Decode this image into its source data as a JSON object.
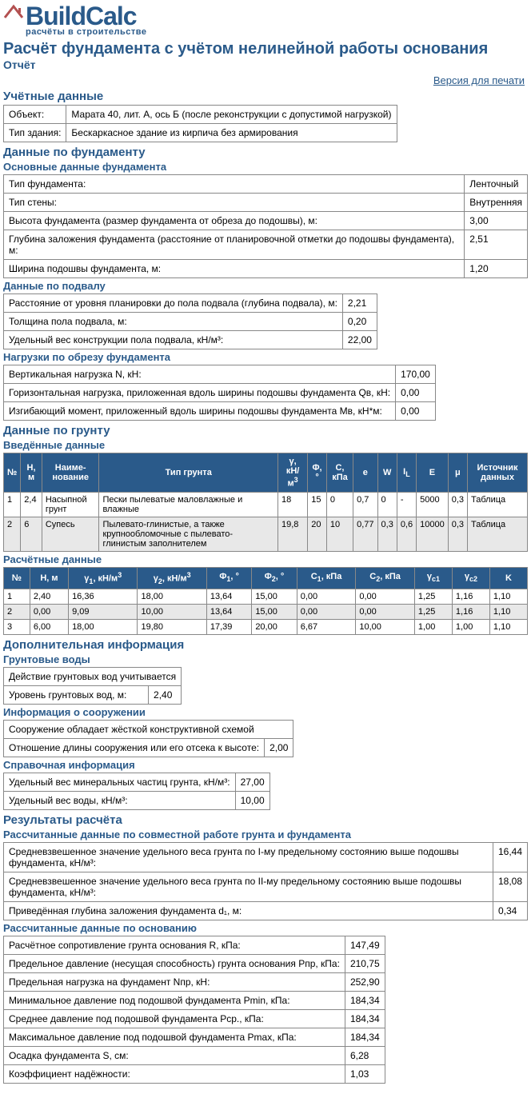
{
  "logo": {
    "text": "BuildCalc",
    "sub": "расчёты в строительстве"
  },
  "page_title": "Расчёт фундамента с учётом нелинейной работы основания",
  "subtitle": "Отчёт",
  "print_link": "Версия для печати",
  "sections": {
    "account": {
      "heading": "Учётные данные",
      "rows": [
        [
          "Объект:",
          "Марата 40, лит. А, ось Б (после реконструкции с допустимой нагрузкой)"
        ],
        [
          "Тип здания:",
          "Бескаркасное здание из кирпича без армирования"
        ]
      ]
    },
    "foundation": {
      "heading": "Данные по фундаменту",
      "main": {
        "heading": "Основные данные фундамента",
        "rows": [
          [
            "Тип фундамента:",
            "Ленточный"
          ],
          [
            "Тип стены:",
            "Внутренняя"
          ],
          [
            "Высота фундамента (размер фундамента от обреза до подошвы), м:",
            "3,00"
          ],
          [
            "Глубина заложения фундамента (расстояние от планировочной отметки до подошвы фундамента), м:",
            "2,51"
          ],
          [
            "Ширина подошвы фундамента, м:",
            "1,20"
          ]
        ]
      },
      "basement": {
        "heading": "Данные по подвалу",
        "rows": [
          [
            "Расстояние от уровня планировки до пола подвала (глубина подвала), м:",
            "2,21"
          ],
          [
            "Толщина пола подвала, м:",
            "0,20"
          ],
          [
            "Удельный вес конструкции пола подвала, кН/м³:",
            "22,00"
          ]
        ]
      },
      "loads": {
        "heading": "Нагрузки по обрезу фундамента",
        "rows": [
          [
            "Вертикальная нагрузка N, кН:",
            "170,00"
          ],
          [
            "Горизонтальная нагрузка, приложенная вдоль ширины подошвы фундамента Qв, кН:",
            "0,00"
          ],
          [
            "Изгибающий момент, приложенный вдоль ширины подошвы фундамента Mв, кН*м:",
            "0,00"
          ]
        ]
      }
    },
    "soil": {
      "heading": "Данные по грунту",
      "input": {
        "heading": "Введённые данные",
        "headers": [
          "№",
          "H, м",
          "Наиме-нование",
          "Тип грунта",
          "γ, кН/м³",
          "Φ, °",
          "C, кПa",
          "e",
          "W",
          "I",
          "E",
          "μ",
          "Источник данных"
        ],
        "rows": [
          [
            "1",
            "2,4",
            "Насыпной грунт",
            "Пески пылеватые маловлажные и влажные",
            "18",
            "15",
            "0",
            "0,7",
            "0",
            "-",
            "5000",
            "0,3",
            "Таблица"
          ],
          [
            "2",
            "6",
            "Супесь",
            "Пылевато-глинистые, а также крупнообломочные с пылевато-глинистым заполнителем",
            "19,8",
            "20",
            "10",
            "0,77",
            "0,3",
            "0,6",
            "10000",
            "0,3",
            "Таблица"
          ]
        ]
      },
      "calc": {
        "heading": "Расчётные данные",
        "headers": [
          "№",
          "H, м",
          "γ₁, кН/м³",
          "γ₂, кН/м³",
          "Φ₁, °",
          "Φ₂, °",
          "C₁, кПa",
          "C₂, кПa",
          "γc1",
          "γc2",
          "K"
        ],
        "rows": [
          [
            "1",
            "2,40",
            "16,36",
            "18,00",
            "13,64",
            "15,00",
            "0,00",
            "0,00",
            "1,25",
            "1,16",
            "1,10"
          ],
          [
            "2",
            "0,00",
            "9,09",
            "10,00",
            "13,64",
            "15,00",
            "0,00",
            "0,00",
            "1,25",
            "1,16",
            "1,10"
          ],
          [
            "3",
            "6,00",
            "18,00",
            "19,80",
            "17,39",
            "20,00",
            "6,67",
            "10,00",
            "1,00",
            "1,00",
            "1,10"
          ]
        ]
      }
    },
    "additional": {
      "heading": "Дополнительная информация",
      "groundwater": {
        "heading": "Грунтовые воды",
        "rows": [
          [
            "Действие грунтовых вод учитывается",
            ""
          ],
          [
            "Уровень грунтовых вод, м:",
            "2,40"
          ]
        ]
      },
      "structure": {
        "heading": "Информация о сооружении",
        "rows": [
          [
            "Сооружение обладает жёсткой конструктивной схемой",
            ""
          ],
          [
            "Отношение длины сооружения или его отсека к высоте:",
            "2,00"
          ]
        ]
      },
      "reference": {
        "heading": "Справочная информация",
        "rows": [
          [
            "Удельный вес минеральных частиц грунта, кН/м³:",
            "27,00"
          ],
          [
            "Удельный вес воды, кН/м³:",
            "10,00"
          ]
        ]
      }
    },
    "results": {
      "heading": "Результаты расчёта",
      "joint": {
        "heading": "Рассчитанные данные по совместной работе грунта и фундамента",
        "rows": [
          [
            "Средневзвешенное значение удельного веса грунта по I-му предельному состоянию выше подошвы фундамента, кН/м³:",
            "16,44"
          ],
          [
            "Средневзвешенное значение удельного веса грунта по II-му предельному состоянию выше подошвы фундамента, кН/м³:",
            "18,08"
          ],
          [
            "Приведённая глубина заложения фундамента d₁, м:",
            "0,34"
          ]
        ]
      },
      "basecalc": {
        "heading": "Рассчитанные данные по основанию",
        "rows": [
          [
            "Расчётное сопротивление грунта основания R, кПa:",
            "147,49"
          ],
          [
            "Предельное давление (несущая способность) грунта основания Pпр, кПa:",
            "210,75"
          ],
          [
            "Предельная нагрузка на фундамент Nпр, кН:",
            "252,90"
          ],
          [
            "Минимальное давление под подошвой фундамента Pmin, кПa:",
            "184,34"
          ],
          [
            "Среднее давление под подошвой фундамента Pср., кПa:",
            "184,34"
          ],
          [
            "Максимальное давление под подошвой фундамента Pmax, кПa:",
            "184,34"
          ],
          [
            "Осадка фундамента S, см:",
            "6,28"
          ],
          [
            "Коэффициент надёжности:",
            "1,03"
          ]
        ]
      }
    }
  },
  "styling": {
    "header_bg": "#2a5a8a",
    "header_fg": "#ffffff",
    "border_color": "#888888",
    "alt_row_bg": "#e8e8e8",
    "heading_color": "#2a5a8a",
    "logo_roof_color": "#b35050"
  }
}
